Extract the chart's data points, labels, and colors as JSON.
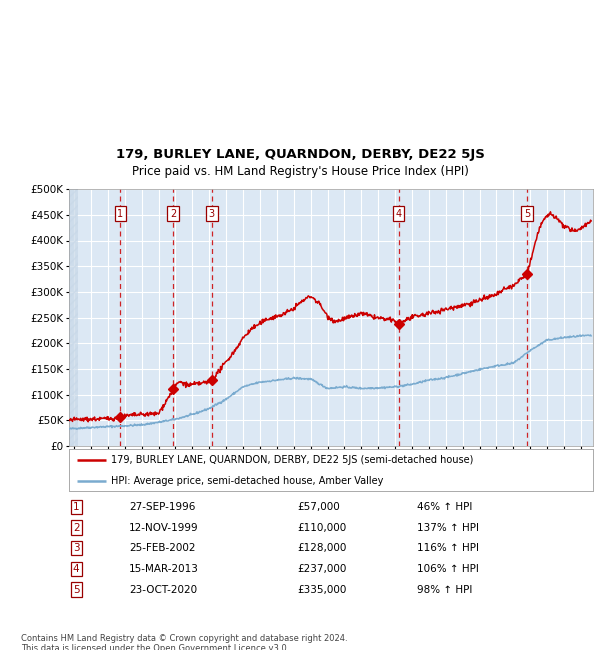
{
  "title": "179, BURLEY LANE, QUARNDON, DERBY, DE22 5JS",
  "subtitle": "Price paid vs. HM Land Registry's House Price Index (HPI)",
  "legend_line1": "179, BURLEY LANE, QUARNDON, DERBY, DE22 5JS (semi-detached house)",
  "legend_line2": "HPI: Average price, semi-detached house, Amber Valley",
  "footer": "Contains HM Land Registry data © Crown copyright and database right 2024.\nThis data is licensed under the Open Government Licence v3.0.",
  "hpi_color": "#7aabcf",
  "price_color": "#cc0000",
  "plot_bg_color": "#dce8f4",
  "grid_color": "#ffffff",
  "ylim": [
    0,
    500000
  ],
  "yticks": [
    0,
    50000,
    100000,
    150000,
    200000,
    250000,
    300000,
    350000,
    400000,
    450000,
    500000
  ],
  "xlim_start": 1993.7,
  "xlim_end": 2024.7,
  "sale_dates_x": [
    1996.74,
    1999.87,
    2002.15,
    2013.21,
    2020.81
  ],
  "sale_prices": [
    57000,
    110000,
    128000,
    237000,
    335000
  ],
  "sale_labels": [
    "1",
    "2",
    "3",
    "4",
    "5"
  ],
  "sale_info": [
    {
      "num": "1",
      "date": "27-SEP-1996",
      "price": "£57,000",
      "hpi": "46% ↑ HPI"
    },
    {
      "num": "2",
      "date": "12-NOV-1999",
      "price": "£110,000",
      "hpi": "137% ↑ HPI"
    },
    {
      "num": "3",
      "date": "25-FEB-2002",
      "price": "£128,000",
      "hpi": "116% ↑ HPI"
    },
    {
      "num": "4",
      "date": "15-MAR-2013",
      "price": "£237,000",
      "hpi": "106% ↑ HPI"
    },
    {
      "num": "5",
      "date": "23-OCT-2020",
      "price": "£335,000",
      "hpi": "98% ↑ HPI"
    }
  ]
}
